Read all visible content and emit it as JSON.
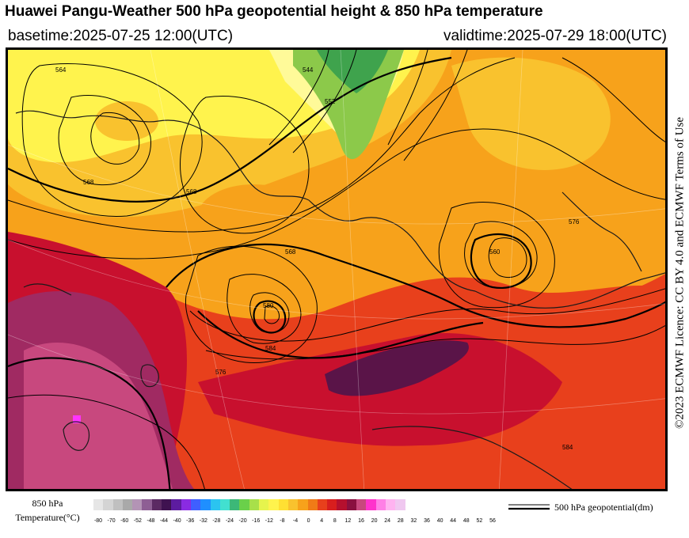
{
  "header": {
    "title": "Huawei Pangu-Weather 500 hPa geopotential height & 850 hPa temperature",
    "basetime": "basetime:2025-07-25 12:00(UTC)",
    "validtime": "validtime:2025-07-29 18:00(UTC)"
  },
  "map": {
    "contour_labels": [
      "564",
      "568",
      "552",
      "544",
      "568",
      "580",
      "568",
      "576",
      "584",
      "560",
      "584",
      "576"
    ],
    "colors": {
      "very_hot": "#a02a62",
      "hot_magenta": "#c8487e",
      "deep_red": "#c8102e",
      "red": "#e8401c",
      "orange": "#f7a21b",
      "yellow_orange": "#f9c22e",
      "yellow": "#fff34d",
      "light_yellow": "#fffa99",
      "green": "#5cb85c",
      "dark_maroon": "#5a1448"
    }
  },
  "licence": "©2023 ECMWF Licence: CC BY 4.0 and ECMWF Terms of Use",
  "legend": {
    "title_line1": "850 hPa",
    "title_line2": "Temperature(°C)",
    "colorbar": [
      "#e6e6e6",
      "#d4d4d4",
      "#c0c0c0",
      "#a9a9a9",
      "#b394b5",
      "#8e5f94",
      "#5b2a63",
      "#3f1250",
      "#5d1ca0",
      "#8a2be2",
      "#3f5fff",
      "#1f8fff",
      "#2bc4f0",
      "#42e0d0",
      "#3cb878",
      "#6ad04a",
      "#a8e04a",
      "#e6f44d",
      "#fff34d",
      "#ffe033",
      "#f9c22e",
      "#f7a21b",
      "#f07b17",
      "#e8401c",
      "#d81e1e",
      "#b5102e",
      "#8a1040",
      "#c8487e",
      "#ff33cc",
      "#ff80e6",
      "#ffb3f0",
      "#f0c8f0"
    ],
    "ticks": [
      "-80",
      "-70",
      "-60",
      "-52",
      "-48",
      "-44",
      "-40",
      "-36",
      "-32",
      "-28",
      "-24",
      "-20",
      "-16",
      "-12",
      "-8",
      "-4",
      "0",
      "4",
      "8",
      "12",
      "16",
      "20",
      "24",
      "28",
      "32",
      "36",
      "40",
      "44",
      "48",
      "52",
      "56"
    ],
    "line_label": "500 hPa geopotential(dm)"
  }
}
